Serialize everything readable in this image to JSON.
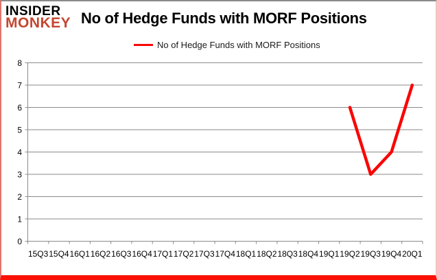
{
  "logo": {
    "line1": "INSIDER",
    "line2": "MONKEY"
  },
  "header": {
    "title": "No of Hedge Funds with MORF Positions"
  },
  "legend": {
    "label": "No of Hedge Funds with MORF Positions"
  },
  "colors": {
    "line": "#fb0505",
    "grid": "#8a8a8a",
    "axis": "#8a8a8a",
    "tick_text": "#000000",
    "logo_red": "#c5452f",
    "frame_bottom": "#fa1005"
  },
  "chart_data": {
    "type": "line",
    "title": "No of Hedge Funds with MORF Positions",
    "categories": [
      "15Q3",
      "15Q4",
      "16Q1",
      "16Q2",
      "16Q3",
      "16Q4",
      "17Q1",
      "17Q2",
      "17Q3",
      "17Q4",
      "18Q1",
      "18Q2",
      "18Q3",
      "18Q4",
      "19Q1",
      "19Q2",
      "19Q3",
      "19Q4",
      "20Q1"
    ],
    "series": [
      {
        "name": "No of Hedge Funds with MORF Positions",
        "values": [
          null,
          null,
          null,
          null,
          null,
          null,
          null,
          null,
          null,
          null,
          null,
          null,
          null,
          null,
          null,
          6,
          3,
          4,
          7
        ]
      }
    ],
    "xlabel": "",
    "ylabel": "",
    "ylim": [
      0,
      8
    ],
    "ytick_interval": 1,
    "grid": true,
    "legend_position": "top-center"
  }
}
